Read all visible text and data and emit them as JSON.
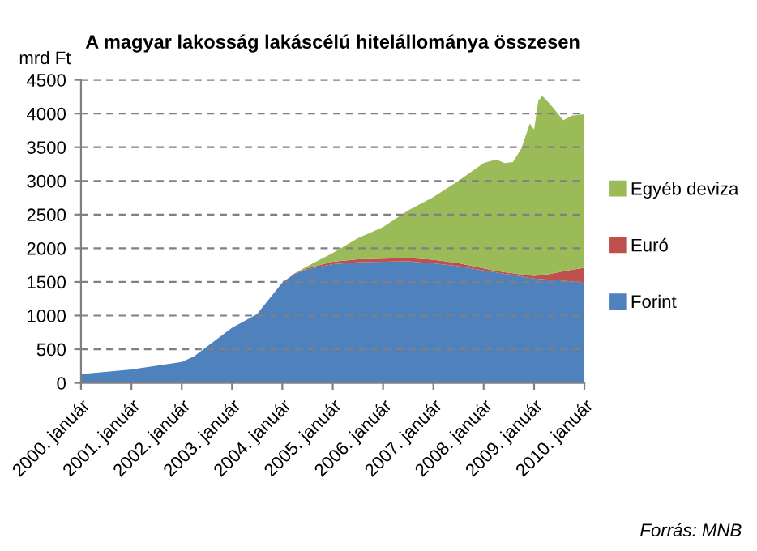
{
  "chart_data": {
    "type": "area",
    "stacked": true,
    "title": "A magyar lakosság lakáscélú hitelállománya összesen",
    "ylabel": "mrd Ft",
    "x": [
      "2000-01",
      "2001-01",
      "2002-01",
      "2002-04",
      "2003-01",
      "2003-07",
      "2004-01",
      "2004-04",
      "2004-07",
      "2005-01",
      "2005-07",
      "2006-01",
      "2006-07",
      "2007-01",
      "2007-07",
      "2008-01",
      "2008-04",
      "2008-06",
      "2008-08",
      "2008-10",
      "2008-12",
      "2009-01",
      "2009-02",
      "2009-03",
      "2009-05",
      "2009-08",
      "2009-10",
      "2010-01"
    ],
    "series": [
      {
        "name": "Forint",
        "color": "#4f81bd",
        "values": [
          130,
          200,
          310,
          395,
          820,
          1020,
          1490,
          1620,
          1690,
          1765,
          1790,
          1800,
          1805,
          1775,
          1735,
          1670,
          1640,
          1620,
          1605,
          1580,
          1560,
          1550,
          1545,
          1540,
          1530,
          1520,
          1505,
          1485
        ]
      },
      {
        "name": "Euró",
        "color": "#c0504d",
        "values": [
          0,
          0,
          0,
          0,
          0,
          0,
          0,
          10,
          15,
          35,
          45,
          45,
          50,
          55,
          45,
          30,
          25,
          25,
          25,
          30,
          35,
          40,
          50,
          60,
          90,
          140,
          175,
          225
        ]
      },
      {
        "name": "Egyéb deviza",
        "color": "#9bbb59",
        "values": [
          0,
          0,
          0,
          0,
          0,
          0,
          0,
          0,
          30,
          130,
          315,
          470,
          705,
          930,
          1220,
          1565,
          1655,
          1620,
          1650,
          1875,
          2255,
          2175,
          2595,
          2665,
          2510,
          2240,
          2290,
          2280
        ]
      }
    ],
    "xlim": [
      "2000-01",
      "2010-01"
    ],
    "xticks": [
      {
        "value": "2000-01",
        "label": "2000. január"
      },
      {
        "value": "2001-01",
        "label": "2001. január"
      },
      {
        "value": "2002-01",
        "label": "2002. január"
      },
      {
        "value": "2003-01",
        "label": "2003. január"
      },
      {
        "value": "2004-01",
        "label": "2004. január"
      },
      {
        "value": "2005-01",
        "label": "2005. január"
      },
      {
        "value": "2006-01",
        "label": "2006. január"
      },
      {
        "value": "2007-01",
        "label": "2007. január"
      },
      {
        "value": "2008-01",
        "label": "2008. január"
      },
      {
        "value": "2009-01",
        "label": "2009. január"
      },
      {
        "value": "2010-01",
        "label": "2010. január"
      }
    ],
    "ylim": [
      0,
      4500
    ],
    "yticks": [
      0,
      500,
      1000,
      1500,
      2000,
      2500,
      3000,
      3500,
      4000,
      4500
    ],
    "grid": "y",
    "legend": "right",
    "annotations": [
      "Forrás: MNB"
    ]
  }
}
